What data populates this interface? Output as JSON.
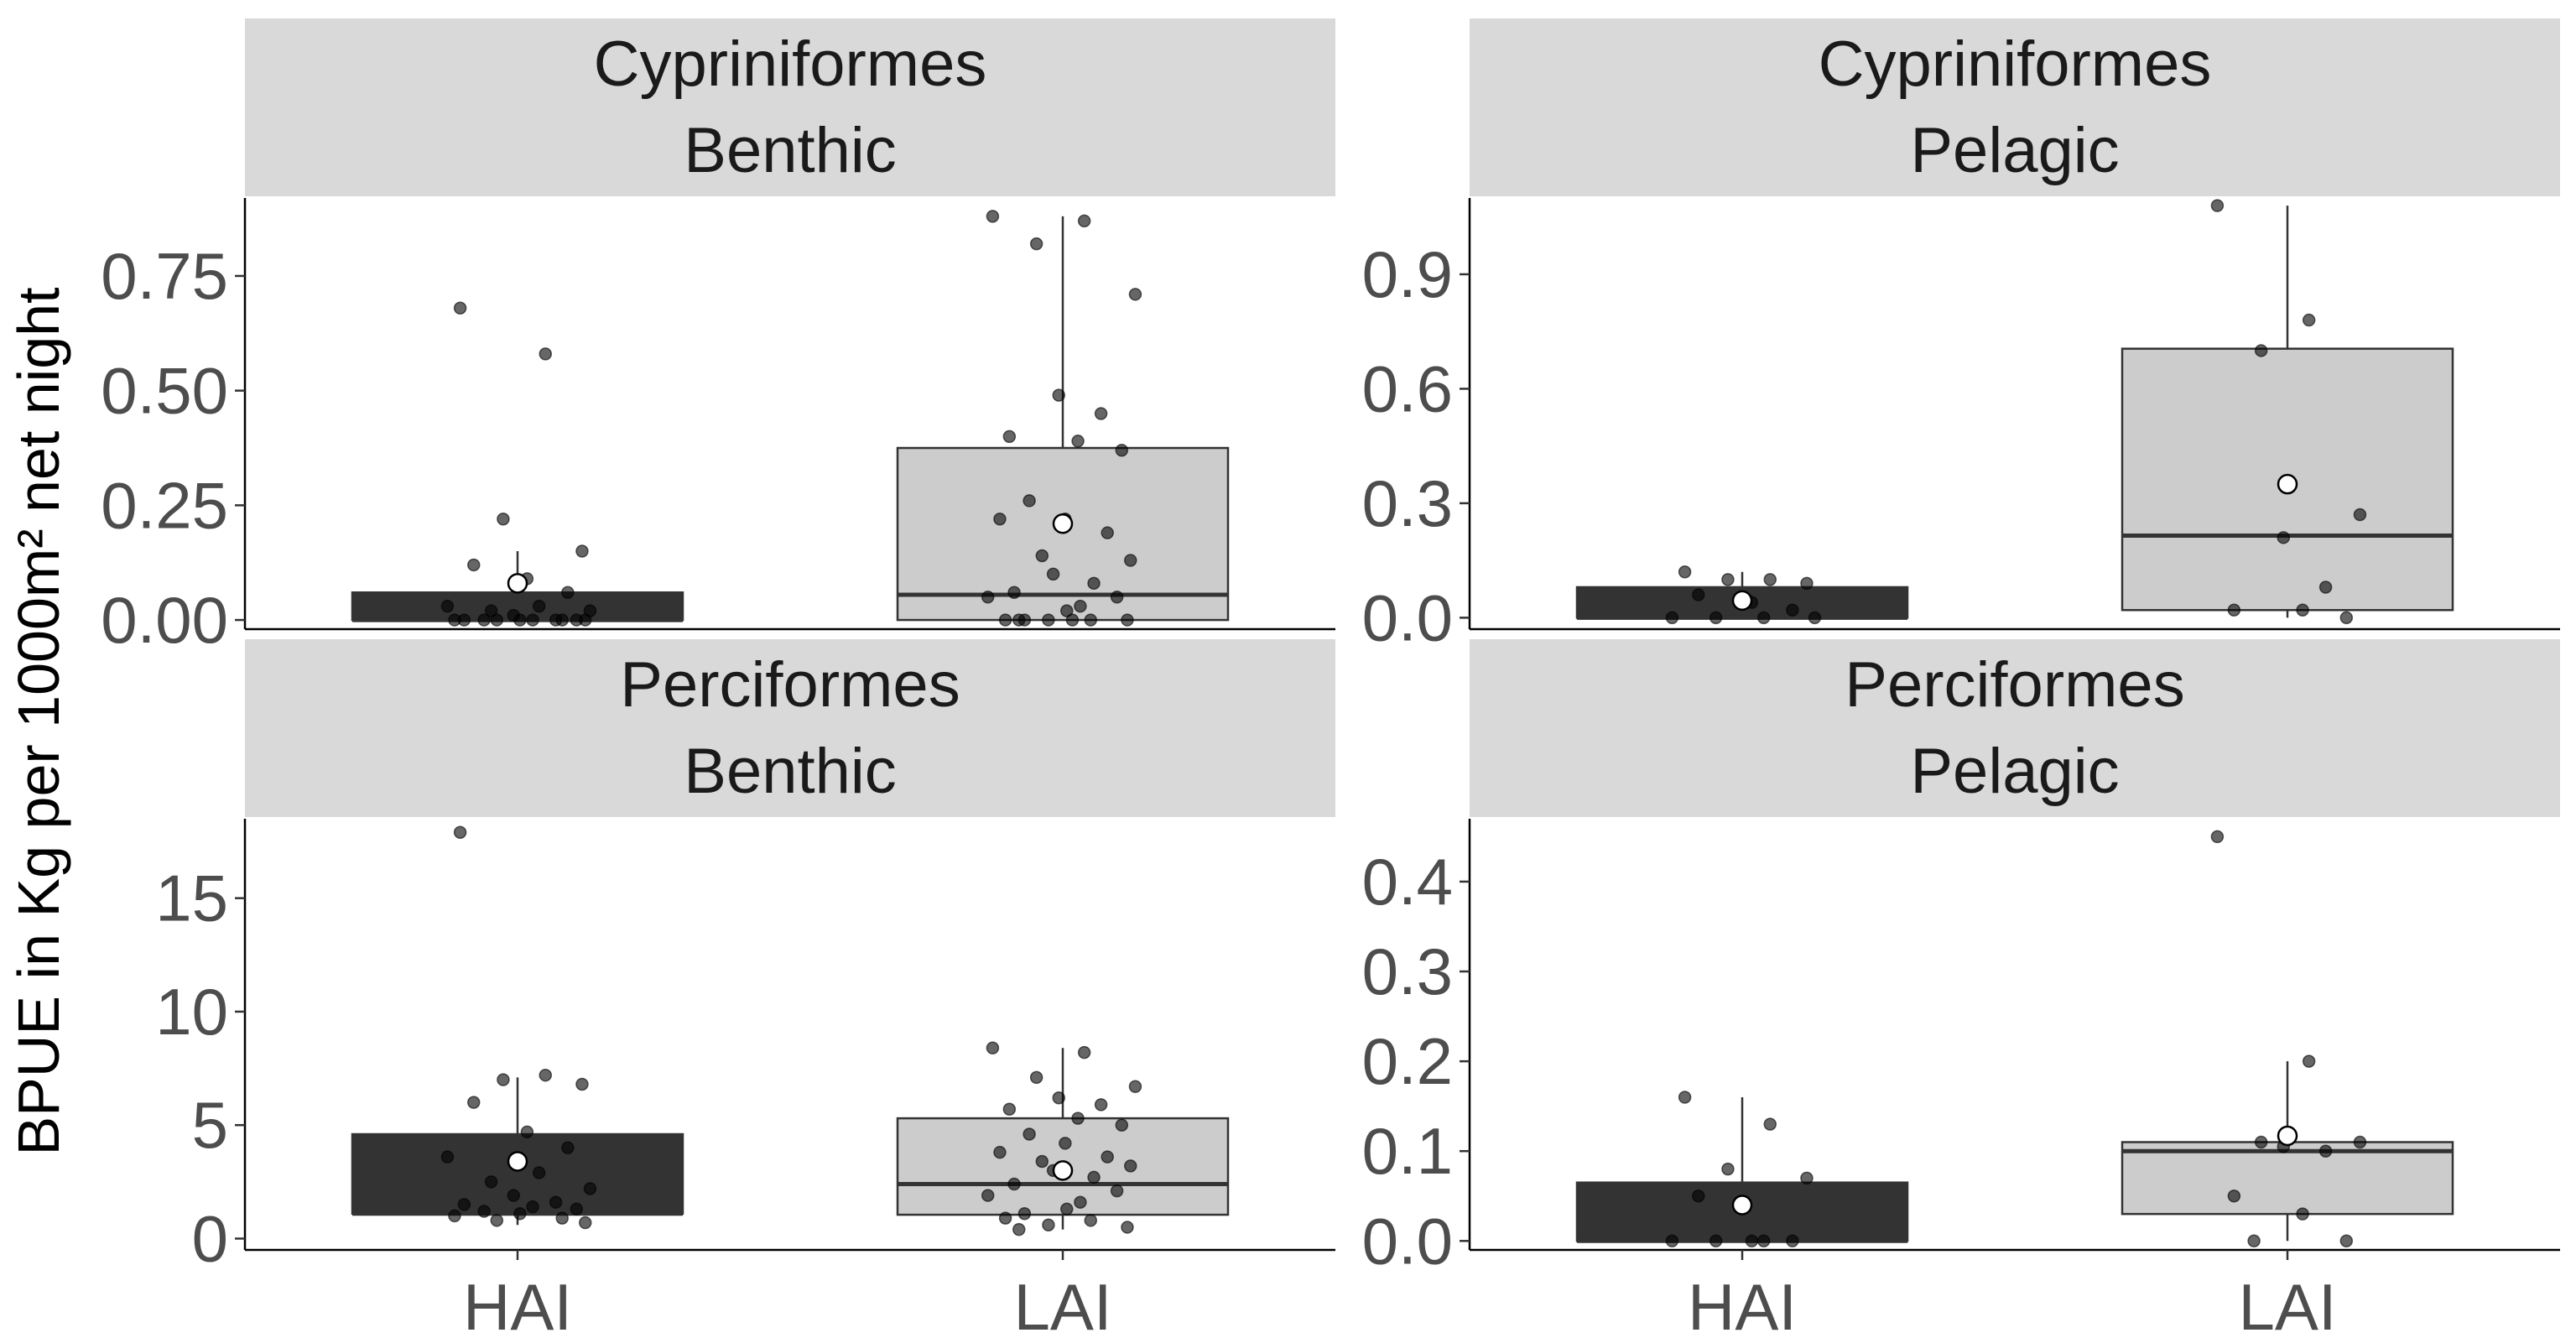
{
  "chart_data": {
    "type": "box",
    "ylabel": "BPUE in Kg per 1000m² net night",
    "categories": [
      "HAI",
      "LAI"
    ],
    "colors": {
      "HAI": "#333333",
      "LAI": "#cccccc",
      "strip": "#d9d9d9",
      "mean_fill": "#ffffff"
    },
    "panels": [
      {
        "order": "Cypriniformes",
        "habitat": "Benthic",
        "ylim": [
          -0.02,
          0.92
        ],
        "yticks": [
          "0.00",
          "0.25",
          "0.50",
          "0.75"
        ],
        "groups": [
          {
            "name": "HAI",
            "q1": 0.0,
            "median": 0.0,
            "q3": 0.06,
            "whisker_low": 0.0,
            "whisker_high": 0.15,
            "mean": 0.08,
            "points": [
              0.68,
              0.58,
              0.22,
              0.15,
              0.12,
              0.09,
              0.06,
              0.03,
              0.03,
              0.02,
              0.02,
              0.01,
              0.0,
              0.0,
              0.0,
              0.0,
              0.0,
              0.0,
              0.0,
              0.0,
              0.0,
              0.0
            ]
          },
          {
            "name": "LAI",
            "q1": 0.0,
            "median": 0.055,
            "q3": 0.375,
            "whisker_low": 0.0,
            "whisker_high": 0.88,
            "mean": 0.21,
            "points": [
              0.88,
              0.87,
              0.82,
              0.71,
              0.49,
              0.45,
              0.4,
              0.39,
              0.37,
              0.26,
              0.22,
              0.22,
              0.19,
              0.14,
              0.13,
              0.1,
              0.08,
              0.06,
              0.05,
              0.05,
              0.03,
              0.02,
              0.0,
              0.0,
              0.0,
              0.0,
              0.0,
              0.0,
              0.0
            ]
          }
        ]
      },
      {
        "order": "Cypriniformes",
        "habitat": "Pelagic",
        "ylim": [
          -0.03,
          1.1
        ],
        "yticks": [
          "0.0",
          "0.3",
          "0.6",
          "0.9"
        ],
        "groups": [
          {
            "name": "HAI",
            "q1": 0.0,
            "median": 0.0,
            "q3": 0.08,
            "whisker_low": 0.0,
            "whisker_high": 0.12,
            "mean": 0.045,
            "points": [
              0.12,
              0.1,
              0.1,
              0.09,
              0.06,
              0.04,
              0.02,
              0.0,
              0.0,
              0.0,
              0.0
            ]
          },
          {
            "name": "LAI",
            "q1": 0.02,
            "median": 0.215,
            "q3": 0.705,
            "whisker_low": 0.0,
            "whisker_high": 1.08,
            "mean": 0.35,
            "points": [
              1.08,
              0.78,
              0.7,
              0.27,
              0.21,
              0.08,
              0.02,
              0.02,
              0.0
            ]
          }
        ]
      },
      {
        "order": "Perciformes",
        "habitat": "Benthic",
        "ylim": [
          -0.5,
          18.5
        ],
        "yticks": [
          "0",
          "5",
          "10",
          "15"
        ],
        "groups": [
          {
            "name": "HAI",
            "q1": 1.1,
            "median": 1.1,
            "q3": 4.6,
            "whisker_low": 0.6,
            "whisker_high": 7.1,
            "mean": 3.4,
            "points": [
              17.9,
              7.2,
              7.0,
              6.8,
              6.0,
              4.7,
              4.0,
              3.6,
              2.9,
              2.5,
              2.2,
              1.9,
              1.6,
              1.5,
              1.4,
              1.3,
              1.2,
              1.1,
              1.0,
              0.9,
              0.8,
              0.7
            ]
          },
          {
            "name": "LAI",
            "q1": 1.05,
            "median": 2.4,
            "q3": 5.3,
            "whisker_low": 0.4,
            "whisker_high": 8.4,
            "mean": 3.0,
            "points": [
              8.4,
              8.2,
              7.1,
              6.7,
              6.2,
              5.9,
              5.7,
              5.3,
              5.0,
              4.6,
              4.2,
              3.8,
              3.6,
              3.4,
              3.2,
              3.0,
              2.7,
              2.4,
              2.1,
              1.9,
              1.6,
              1.3,
              1.1,
              0.9,
              0.8,
              0.6,
              0.5,
              0.4
            ]
          }
        ]
      },
      {
        "order": "Perciformes",
        "habitat": "Pelagic",
        "ylim": [
          -0.01,
          0.47
        ],
        "yticks": [
          "0.0",
          "0.1",
          "0.2",
          "0.3",
          "0.4"
        ],
        "groups": [
          {
            "name": "HAI",
            "q1": 0.0,
            "median": 0.0,
            "q3": 0.065,
            "whisker_low": 0.0,
            "whisker_high": 0.16,
            "mean": 0.04,
            "points": [
              0.16,
              0.13,
              0.08,
              0.07,
              0.05,
              0.0,
              0.0,
              0.0,
              0.0,
              0.0
            ]
          },
          {
            "name": "LAI",
            "q1": 0.03,
            "median": 0.1,
            "q3": 0.11,
            "whisker_low": 0.0,
            "whisker_high": 0.2,
            "mean": 0.117,
            "points": [
              0.45,
              0.2,
              0.11,
              0.11,
              0.105,
              0.1,
              0.05,
              0.03,
              0.0,
              0.0
            ]
          }
        ]
      }
    ]
  }
}
